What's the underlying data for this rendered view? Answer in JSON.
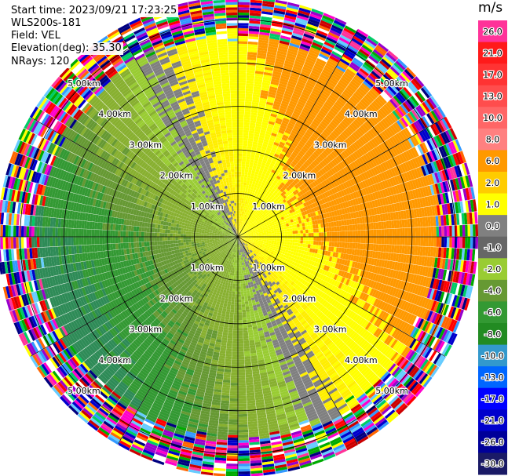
{
  "header": {
    "start_time": "Start time: 2023/09/21 17:23:25",
    "instrument": "WLS200s-181",
    "field": "Field: VEL",
    "elevation": "Elevation(deg): 35.30",
    "nrays": "NRays: 120"
  },
  "colorbar": {
    "unit": "m/s",
    "ticks": [
      "26.0",
      "21.0",
      "17.0",
      "13.0",
      "10.0",
      "8.0",
      "6.0",
      "2.0",
      "1.0",
      "0.0",
      "-1.0",
      "-2.0",
      "-4.0",
      "-6.0",
      "-8.0",
      "-10.0",
      "-13.0",
      "-17.0",
      "-21.0",
      "-26.0",
      "-30.0"
    ],
    "colors": [
      "#ff3399",
      "#ff1a1a",
      "#ff3333",
      "#ff4d4d",
      "#ff6666",
      "#ff8080",
      "#ff9900",
      "#ffcc00",
      "#ffff00",
      "#808080",
      "#666666",
      "#99cc33",
      "#669933",
      "#339933",
      "#228b22",
      "#3399cc",
      "#0066ff",
      "#0000ff",
      "#0000cc",
      "#000099",
      "#1a1a66"
    ]
  },
  "chart_data": {
    "type": "heatmap",
    "projection": "polar-ppi",
    "field": "VEL",
    "unit": "m/s",
    "rays": 120,
    "range_rings_km": [
      1.0,
      2.0,
      3.0,
      4.0,
      5.0
    ],
    "ring_labels": [
      "1.00km",
      "2.00km",
      "3.00km",
      "4.00km",
      "5.00km"
    ],
    "max_range_km": 5.5,
    "radial_structure": [
      {
        "range_km": [
          0.0,
          1.0
        ],
        "approach_side_ms": -2.0,
        "recede_side_ms": 2.0
      },
      {
        "range_km": [
          1.0,
          2.0
        ],
        "approach_side_ms": -6.0,
        "recede_side_ms": 2.0
      },
      {
        "range_km": [
          2.0,
          3.0
        ],
        "approach_side_ms": -4.0,
        "recede_side_ms": 6.0
      },
      {
        "range_km": [
          3.0,
          4.0
        ],
        "approach_side_ms": -6.0,
        "recede_side_ms": 6.0
      },
      {
        "range_km": [
          4.0,
          4.6
        ],
        "approach_side_ms": -8.0,
        "recede_side_ms": 6.0
      },
      {
        "range_km": [
          4.6,
          5.5
        ],
        "note": "noise / folded velocities"
      }
    ],
    "approach_direction": "west-southwest",
    "recede_direction": "east-northeast"
  }
}
